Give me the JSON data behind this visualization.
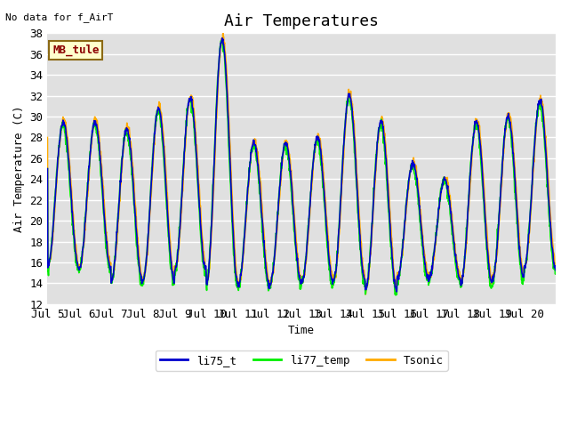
{
  "title": "Air Temperatures",
  "xlabel": "Time",
  "ylabel": "Air Temperature (C)",
  "no_data_text": "No data for f_AirT",
  "legend_label_text": "MB_tule",
  "ylim": [
    12,
    38
  ],
  "yticks": [
    12,
    14,
    16,
    18,
    20,
    22,
    24,
    26,
    28,
    30,
    32,
    34,
    36,
    38
  ],
  "xtick_labels": [
    "Jul 5",
    "Jul 6",
    "Jul 7",
    "Jul 8",
    "Jul 9",
    "Jul 10",
    "Jul 11",
    "Jul 12",
    "Jul 13",
    "Jul 14",
    "Jul 15",
    "Jul 16",
    "Jul 17",
    "Jul 18",
    "Jul 19",
    "Jul 20"
  ],
  "series_colors": {
    "li75_t": "#0000cc",
    "li77_temp": "#00ee00",
    "Tsonic": "#ffaa00"
  },
  "series_linewidth": 1.2,
  "plot_bg_color": "#e0e0e0",
  "grid_color": "white",
  "title_fontsize": 13,
  "axis_fontsize": 9,
  "tick_fontsize": 9,
  "day_peaks": [
    29.5,
    29.5,
    28.8,
    30.8,
    31.8,
    37.5,
    27.5,
    27.5,
    28.0,
    32.0,
    29.5,
    25.5,
    24.0,
    29.5,
    30.0,
    31.5
  ],
  "day_troughs": [
    15.5,
    15.5,
    14.2,
    14.3,
    15.2,
    14.0,
    13.8,
    14.0,
    14.1,
    14.3,
    13.3,
    14.5,
    14.5,
    14.0,
    14.5,
    15.5
  ]
}
